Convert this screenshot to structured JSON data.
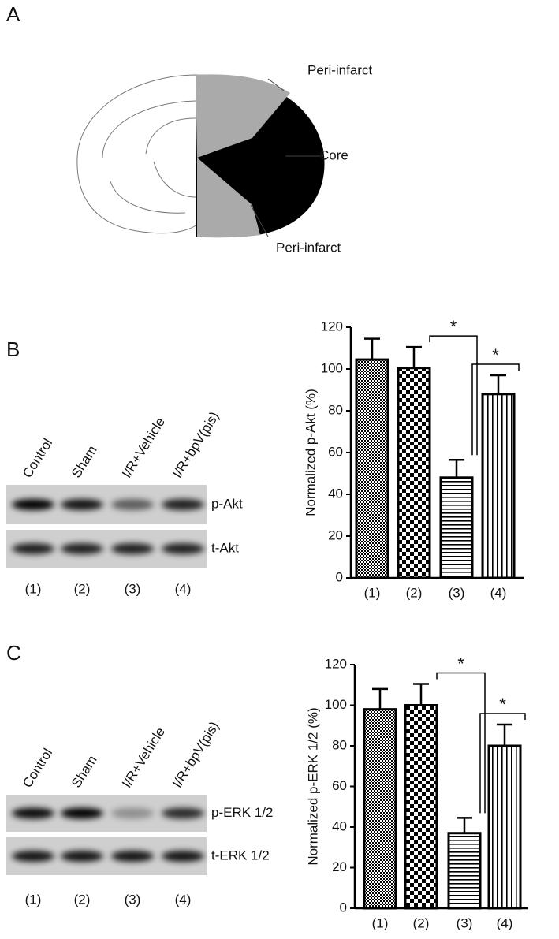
{
  "panel_a": {
    "label": "A",
    "annotations": [
      "Peri-infarct",
      "Core",
      "Peri-infarct"
    ]
  },
  "panel_b": {
    "label": "B",
    "lanes": [
      "Control",
      "Sham",
      "I/R+Vehicle",
      "I/R+bpV(pis)"
    ],
    "bands": [
      "p-Akt",
      "t-Akt"
    ],
    "lane_numbers": [
      "(1)",
      "(2)",
      "(3)",
      "(4)"
    ]
  },
  "panel_c": {
    "label": "C",
    "lanes": [
      "Control",
      "Sham",
      "I/R+Vehicle",
      "I/R+bpV(pis)"
    ],
    "bands": [
      "p-ERK 1/2",
      "t-ERK 1/2"
    ],
    "lane_numbers": [
      "(1)",
      "(2)",
      "(3)",
      "(4)"
    ]
  },
  "chart_data": [
    {
      "type": "bar",
      "y_label": "Normalized p-Akt (%)",
      "categories": [
        "(1)",
        "(2)",
        "(3)",
        "(4)"
      ],
      "values": [
        104.5,
        100.5,
        48,
        88
      ],
      "errors": [
        10,
        10,
        8.5,
        9
      ],
      "color": "#000000",
      "ylim": [
        0,
        120
      ],
      "yticks": [
        0,
        20,
        40,
        60,
        80,
        100,
        120
      ],
      "annotations": [
        "*",
        "*"
      ]
    },
    {
      "type": "bar",
      "y_label": "Normalized p-ERK 1/2 (%)",
      "categories": [
        "(1)",
        "(2)",
        "(3)",
        "(4)"
      ],
      "values": [
        98,
        100,
        37,
        80
      ],
      "errors": [
        10,
        10.5,
        7.5,
        10.5
      ],
      "color": "#000000",
      "ylim": [
        0,
        120
      ],
      "yticks": [
        0,
        20,
        40,
        60,
        80,
        100,
        120
      ],
      "annotations": [
        "*",
        "*"
      ]
    }
  ]
}
